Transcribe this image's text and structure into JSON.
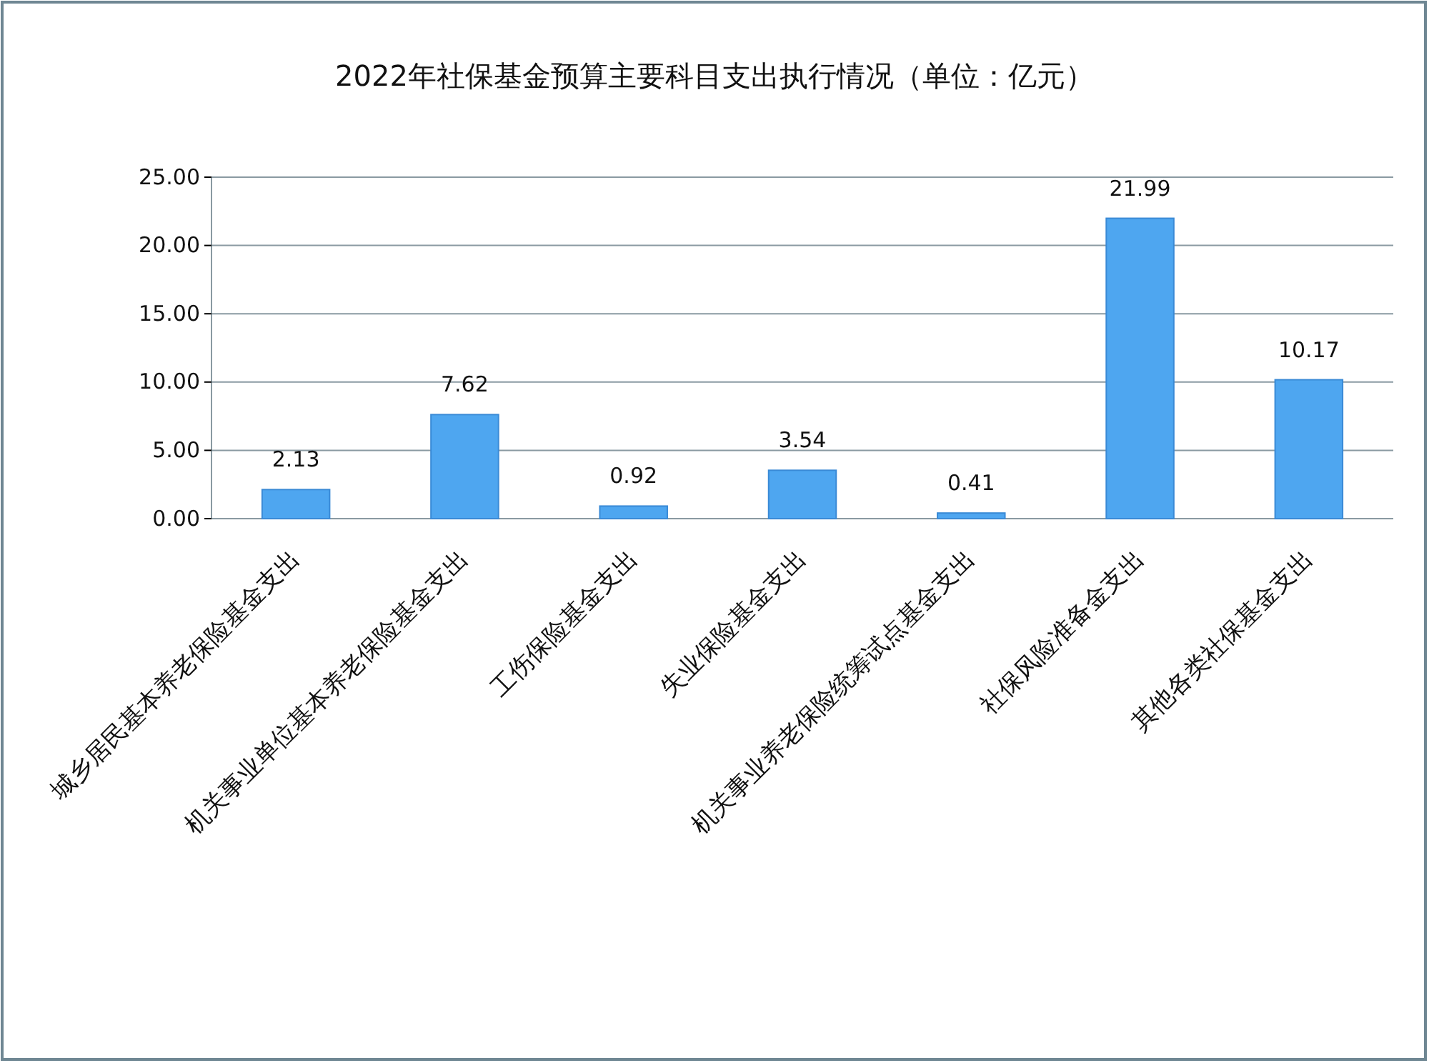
{
  "chart_data": {
    "type": "bar",
    "title": "2022年社保基金预算主要科目支出执行情况（单位：亿元）",
    "categories": [
      "城乡居民基本养老保险基金支出",
      "机关事业单位基本养老保险基金支出",
      "工伤保险基金支出",
      "失业保险基金支出",
      "机关事业养老保险统筹试点基金支出",
      "社保风险准备金支出",
      "其他各类社保基金支出"
    ],
    "values": [
      2.13,
      7.62,
      0.92,
      3.54,
      0.41,
      21.99,
      10.17
    ],
    "color": "#4ea6f0",
    "ylim": [
      0,
      25
    ],
    "yticks": [
      {
        "value": 0,
        "label": "0.00"
      },
      {
        "value": 5,
        "label": "5.00"
      },
      {
        "value": 10,
        "label": "10.00"
      },
      {
        "value": 15,
        "label": "15.00"
      },
      {
        "value": 20,
        "label": "20.00"
      },
      {
        "value": 25,
        "label": "25.00"
      }
    ],
    "grid": "y",
    "data_labels": true
  }
}
